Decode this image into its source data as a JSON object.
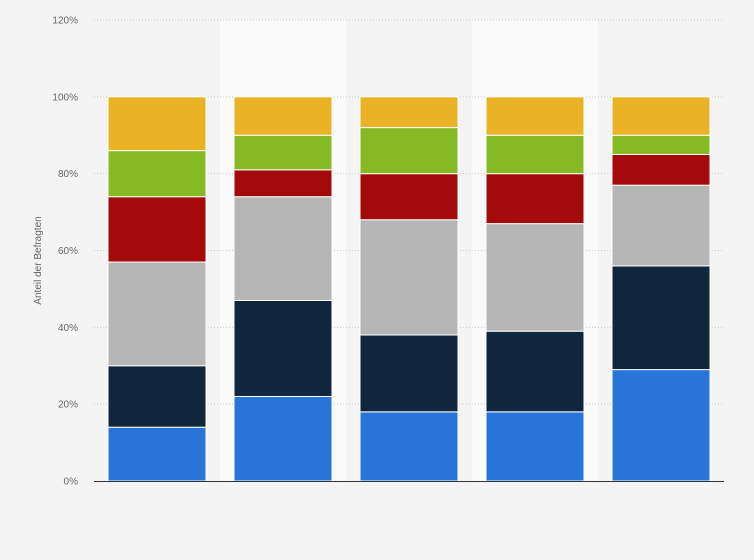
{
  "chart_data": {
    "type": "bar",
    "stacked": true,
    "title": "",
    "xlabel": "",
    "ylabel": "Anteil der Befragten",
    "ylim": [
      0,
      120
    ],
    "yticks": [
      0,
      20,
      40,
      60,
      80,
      100,
      120
    ],
    "ytick_labels": [
      "0%",
      "20%",
      "40%",
      "60%",
      "80%",
      "100%",
      "120%"
    ],
    "grid": true,
    "legend": "none",
    "categories": [
      "",
      "",
      "",
      "",
      ""
    ],
    "series": [
      {
        "color": "#2775d8",
        "values": [
          14,
          22,
          18,
          18,
          29
        ]
      },
      {
        "color": "#10263d",
        "values": [
          16,
          25,
          20,
          21,
          27
        ]
      },
      {
        "color": "#b6b6b6",
        "values": [
          27,
          27,
          30,
          28,
          21
        ]
      },
      {
        "color": "#a40a0a",
        "values": [
          17,
          7,
          12,
          13,
          8
        ]
      },
      {
        "color": "#86ba24",
        "values": [
          12,
          9,
          12,
          10,
          5
        ]
      },
      {
        "color": "#eab325",
        "values": [
          14,
          10,
          8,
          10,
          10
        ]
      }
    ]
  }
}
